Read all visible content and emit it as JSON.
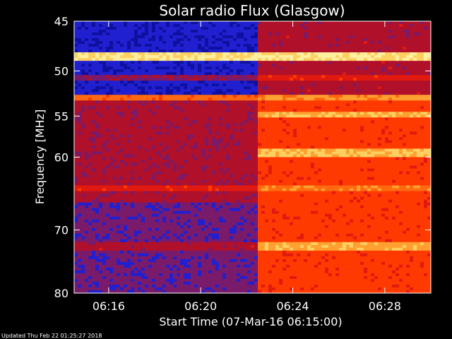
{
  "chart_data": {
    "type": "heatmap",
    "title": "Solar radio Flux (Glasgow)",
    "xlabel": "Start Time (07-Mar-16 06:15:00)",
    "ylabel": "Frequency [MHz]",
    "x_unit": "time of day",
    "x_range": [
      "06:14:30",
      "06:30:00"
    ],
    "y_range": [
      45,
      80
    ],
    "y_scale": "log",
    "y_inverted": true,
    "x_ticks": [
      "06:16",
      "06:20",
      "06:24",
      "06:28"
    ],
    "x_tick_values_min": [
      16,
      20,
      24,
      28
    ],
    "y_ticks": [
      45,
      50,
      55,
      60,
      70,
      80
    ],
    "grid": false,
    "burst_onset_time": "06:22:30",
    "colormap": [
      "#1010a0",
      "#2020d0",
      "#7a1a6a",
      "#b0102a",
      "#e01a10",
      "#ff3a00",
      "#ff6a10",
      "#ffa030",
      "#ffd060",
      "#fff0a0"
    ]
  },
  "footer": {
    "updated": "Updated Thu Feb 22 01:25:27 2018"
  }
}
